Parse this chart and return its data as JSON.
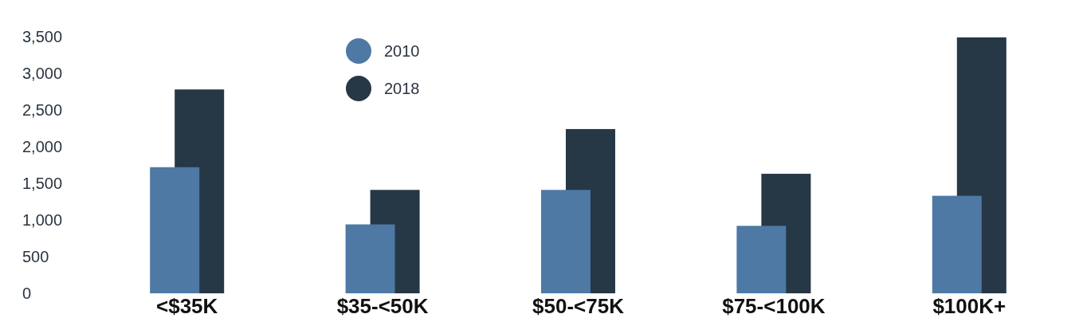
{
  "chart_data": {
    "type": "bar",
    "categories": [
      "<$35K",
      "$35-<50K",
      "$50-<75K",
      "$75-<100K",
      "$100K+"
    ],
    "series": [
      {
        "name": "2010",
        "color": "#4d79a4",
        "values": [
          1720,
          940,
          1410,
          920,
          1330
        ]
      },
      {
        "name": "2018",
        "color": "#263746",
        "values": [
          2780,
          1410,
          2240,
          1630,
          3490
        ]
      }
    ],
    "ylim": [
      0,
      3500
    ],
    "yticks": [
      {
        "value": 0,
        "label": "0"
      },
      {
        "value": 500,
        "label": "500"
      },
      {
        "value": 1000,
        "label": "1,000"
      },
      {
        "value": 1500,
        "label": "1,500"
      },
      {
        "value": 2000,
        "label": "2,000"
      },
      {
        "value": 2500,
        "label": "2,500"
      },
      {
        "value": 3000,
        "label": "3,000"
      },
      {
        "value": 3500,
        "label": "3,500"
      }
    ],
    "legend": "top left",
    "marker": "circle"
  }
}
